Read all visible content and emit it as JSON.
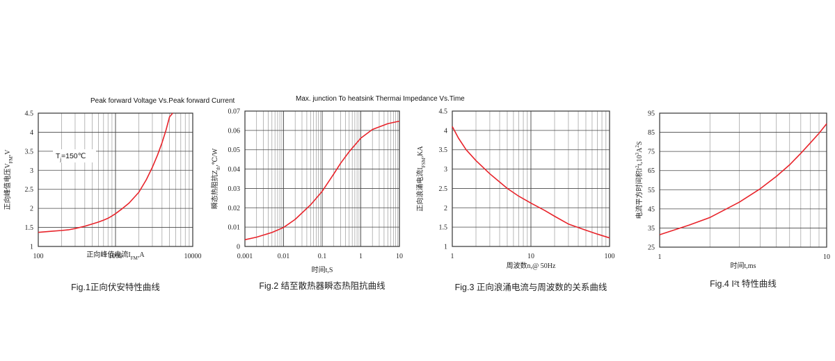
{
  "colors": {
    "curve": "#e8232a",
    "grid": "#444444",
    "minor_grid": "#9a9a9a",
    "frame": "#333333",
    "text": "#222222"
  },
  "chart_data": [
    {
      "type": "line",
      "title": "Peak forward Voltage Vs.Peak forward Current",
      "caption": "Fig.1正向伏安特性曲线",
      "xlabel_parts": [
        "正向峰值电流I",
        "FM",
        ",A"
      ],
      "ylabel_parts": [
        "正向峰值电压V",
        "FM",
        ",V"
      ],
      "x_scale": "log",
      "y_scale": "linear",
      "xlim": [
        100,
        10000
      ],
      "ylim": [
        1,
        4.5
      ],
      "x_ticks": [
        100,
        1000,
        10000
      ],
      "x_tick_labels": [
        "100",
        "1000",
        "10000"
      ],
      "y_ticks": [
        1,
        1.5,
        2,
        2.5,
        3,
        3.5,
        4,
        4.5
      ],
      "y_tick_labels": [
        "1",
        "1.5",
        "2",
        "2.5",
        "3",
        "3.5",
        "4",
        "4.5"
      ],
      "annotation_parts": [
        "T",
        "j",
        "=150℃"
      ],
      "series": [
        {
          "x": [
            100,
            150,
            200,
            250,
            300,
            400,
            500,
            600,
            700,
            800,
            900,
            1000,
            1200,
            1500,
            2000,
            2500,
            3000,
            3500,
            4000,
            4500,
            5000,
            5500
          ],
          "y": [
            1.37,
            1.4,
            1.42,
            1.44,
            1.47,
            1.53,
            1.59,
            1.64,
            1.69,
            1.74,
            1.8,
            1.86,
            1.98,
            2.14,
            2.42,
            2.75,
            3.08,
            3.4,
            3.72,
            4.05,
            4.4,
            4.5
          ]
        }
      ]
    },
    {
      "type": "line",
      "title": "Max. junction To heatsink Thermai Impedance Vs.Time",
      "caption": "Fig.2 结至散热器瞬态热阻抗曲线",
      "xlabel_parts": [
        "时间t,S"
      ],
      "ylabel_parts": [
        "瞬态热阻抗Z",
        "th",
        ",℃/W"
      ],
      "x_scale": "log",
      "y_scale": "linear",
      "xlim": [
        0.001,
        10
      ],
      "ylim": [
        0,
        0.07
      ],
      "x_ticks": [
        0.001,
        0.01,
        0.1,
        1,
        10
      ],
      "x_tick_labels": [
        "0.001",
        "0.01",
        "0.1",
        "1",
        "10"
      ],
      "y_ticks": [
        0,
        0.01,
        0.02,
        0.03,
        0.04,
        0.05,
        0.06,
        0.07
      ],
      "y_tick_labels": [
        "0",
        "0.01",
        "0.02",
        "0.03",
        "0.04",
        "0.05",
        "0.06",
        "0.07"
      ],
      "series": [
        {
          "x": [
            0.001,
            0.002,
            0.005,
            0.01,
            0.02,
            0.05,
            0.1,
            0.2,
            0.3,
            0.5,
            1,
            2,
            5,
            10
          ],
          "y": [
            0.0035,
            0.0048,
            0.0072,
            0.0098,
            0.014,
            0.0215,
            0.0285,
            0.0375,
            0.043,
            0.049,
            0.056,
            0.0605,
            0.0635,
            0.0648
          ]
        }
      ]
    },
    {
      "type": "line",
      "title": "",
      "caption": "Fig.3 正向浪涌电流与周波数的关系曲线",
      "xlabel_parts": [
        "周波数n,@ 50Hz"
      ],
      "ylabel_parts": [
        "正向浪涌电流I",
        "FSM",
        ",KA"
      ],
      "x_scale": "log",
      "y_scale": "linear",
      "xlim": [
        1,
        100
      ],
      "ylim": [
        1,
        4.5
      ],
      "x_ticks": [
        1,
        10,
        100
      ],
      "x_tick_labels": [
        "1",
        "10",
        "100"
      ],
      "y_ticks": [
        1,
        1.5,
        2,
        2.5,
        3,
        3.5,
        4,
        4.5
      ],
      "y_tick_labels": [
        "1",
        "1.5",
        "2",
        "2.5",
        "3",
        "3.5",
        "4",
        "4.5"
      ],
      "series": [
        {
          "x": [
            1,
            1.2,
            1.5,
            2,
            3,
            5,
            7,
            10,
            15,
            20,
            30,
            50,
            70,
            100
          ],
          "y": [
            4.1,
            3.8,
            3.5,
            3.22,
            2.88,
            2.5,
            2.3,
            2.12,
            1.93,
            1.78,
            1.58,
            1.42,
            1.32,
            1.22
          ]
        }
      ]
    },
    {
      "type": "line",
      "title": "",
      "caption": "Fig.4 I²t 特性曲线",
      "xlabel_parts": [
        "时间t,ms"
      ],
      "ylabel_parts": [
        "电流平方时间积I",
        "2",
        "t,10",
        "3",
        "A",
        "2",
        "S"
      ],
      "x_scale": "log",
      "y_scale": "linear",
      "xlim": [
        1,
        10
      ],
      "ylim": [
        25,
        95
      ],
      "x_ticks": [
        1,
        10
      ],
      "x_tick_labels": [
        "1",
        "10"
      ],
      "y_ticks": [
        25,
        35,
        45,
        55,
        65,
        75,
        85,
        95
      ],
      "y_tick_labels": [
        "25",
        "35",
        "45",
        "55",
        "65",
        "75",
        "85",
        "95"
      ],
      "series": [
        {
          "x": [
            1,
            1.5,
            2,
            3,
            4,
            5,
            6,
            7,
            8,
            9,
            10
          ],
          "y": [
            31.5,
            36.5,
            40.5,
            48.5,
            55.5,
            62.0,
            68.0,
            74.0,
            79.5,
            84.5,
            89.5
          ]
        }
      ]
    }
  ]
}
